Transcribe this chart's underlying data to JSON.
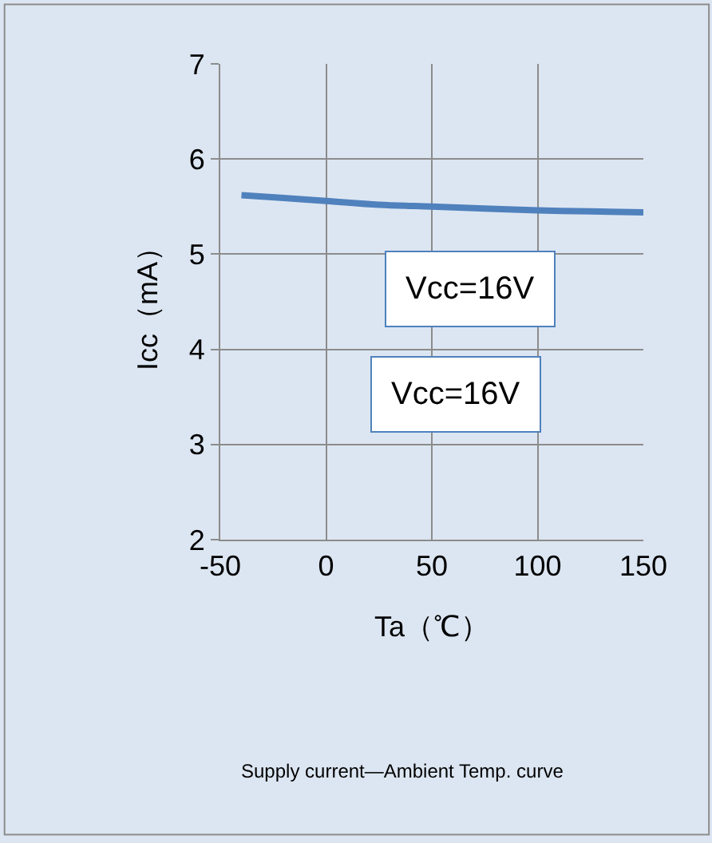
{
  "chart_data": {
    "type": "line",
    "xlabel": "Ta（℃）",
    "ylabel": "Icc（mA）",
    "x": [
      -40,
      -20,
      0,
      25,
      50,
      75,
      100,
      125,
      150
    ],
    "series": [
      {
        "color": "#4f81bd",
        "values": [
          5.62,
          5.59,
          5.56,
          5.52,
          5.5,
          5.48,
          5.46,
          5.45,
          5.44
        ]
      }
    ],
    "xlim": [
      -50,
      150
    ],
    "xticks": [
      -50,
      0,
      50,
      100,
      150
    ],
    "ylim": [
      2,
      7
    ],
    "yticks": [
      2,
      3,
      4,
      5,
      6,
      7
    ],
    "grid": true,
    "marker": "none",
    "line_style": "solid",
    "annotations": [
      "Vcc=16V",
      "Vcc=16V",
      "Supply current—Ambient Temp. curve"
    ]
  }
}
